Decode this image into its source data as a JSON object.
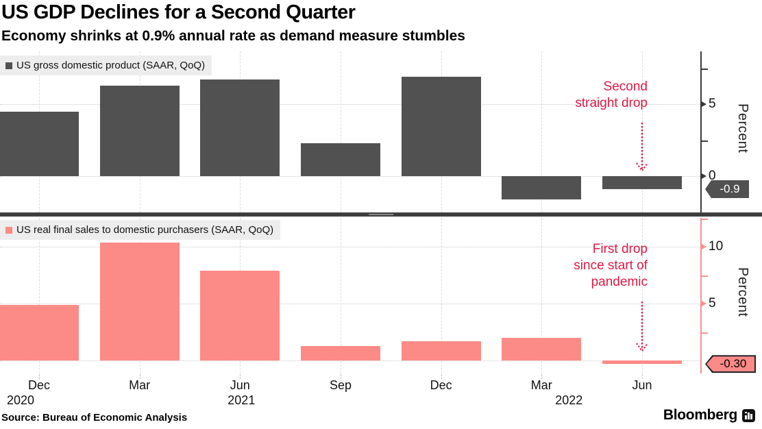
{
  "header": {
    "title": "US GDP Declines for a Second Quarter",
    "subtitle": "Economy shrinks at 0.9% annual rate as demand measure stumbles"
  },
  "footer": {
    "source": "Source: Bureau of Economic Analysis",
    "brand": "Bloomberg"
  },
  "colors": {
    "annotation_red": "#e11845",
    "grid": "#d7d7d7",
    "legend_bg": "#ededed",
    "divider": "#3e3e3e"
  },
  "xaxis": {
    "months": [
      "Dec",
      "Mar",
      "Jun",
      "Sep",
      "Dec",
      "Mar",
      "Jun"
    ],
    "years": [
      {
        "text": "2020",
        "index": 0,
        "dx": -27
      },
      {
        "text": "2021",
        "index": 2,
        "dx": 2
      },
      {
        "text": "2022",
        "index": 5,
        "dx": 40
      }
    ]
  },
  "chart_data": [
    {
      "type": "bar",
      "panel": "top",
      "legend": "US gross domestic product (SAAR, QoQ)",
      "categories": [
        "Dec 2020",
        "Mar 2021",
        "Jun 2021",
        "Sep 2021",
        "Dec 2021",
        "Mar 2022",
        "Jun 2022"
      ],
      "values": [
        4.5,
        6.3,
        6.7,
        2.3,
        6.9,
        -1.6,
        -0.9
      ],
      "bar_color": "#515151",
      "axis_color": "#3a3a3a",
      "tick_color": "#3a3a3a",
      "ylabel": "Percent",
      "ylim": [
        -2.52,
        8.67
      ],
      "gridlines": [
        0,
        5
      ],
      "ticks_labeled": [
        0,
        5
      ],
      "ticks_minor": [
        2.5,
        7.5
      ],
      "tag": {
        "text": "-0.9",
        "value": -0.9,
        "bg": "#515151",
        "text_color": "#ffffff",
        "border": false,
        "width": 64
      },
      "annotation": {
        "lines": [
          "Second",
          "straight drop"
        ],
        "color": "#e11845"
      }
    },
    {
      "type": "bar",
      "panel": "bottom",
      "legend": "US real final sales to domestic purchasers (SAAR, QoQ)",
      "categories": [
        "Dec 2020",
        "Mar 2021",
        "Jun 2021",
        "Sep 2021",
        "Dec 2021",
        "Mar 2022",
        "Jun 2022"
      ],
      "values": [
        4.9,
        10.4,
        7.9,
        1.3,
        1.7,
        2.0,
        -0.3
      ],
      "bar_color": "#fc8a86",
      "axis_color": "#f8918d",
      "tick_color": "#f8918d",
      "ylabel": "Percent",
      "ylim": [
        -1.13,
        12.55
      ],
      "gridlines": [
        0,
        5,
        10
      ],
      "ticks_labeled": [
        5,
        10
      ],
      "ticks_minor": [
        2.5,
        7.5,
        12.5
      ],
      "tag": {
        "text": "-0.30",
        "value": -0.3,
        "bg": "#fc8a86",
        "text_color": "#000000",
        "border": true,
        "width": 74
      },
      "annotation": {
        "lines": [
          "First drop",
          "since start of",
          "pandemic"
        ],
        "color": "#e11845"
      }
    }
  ]
}
